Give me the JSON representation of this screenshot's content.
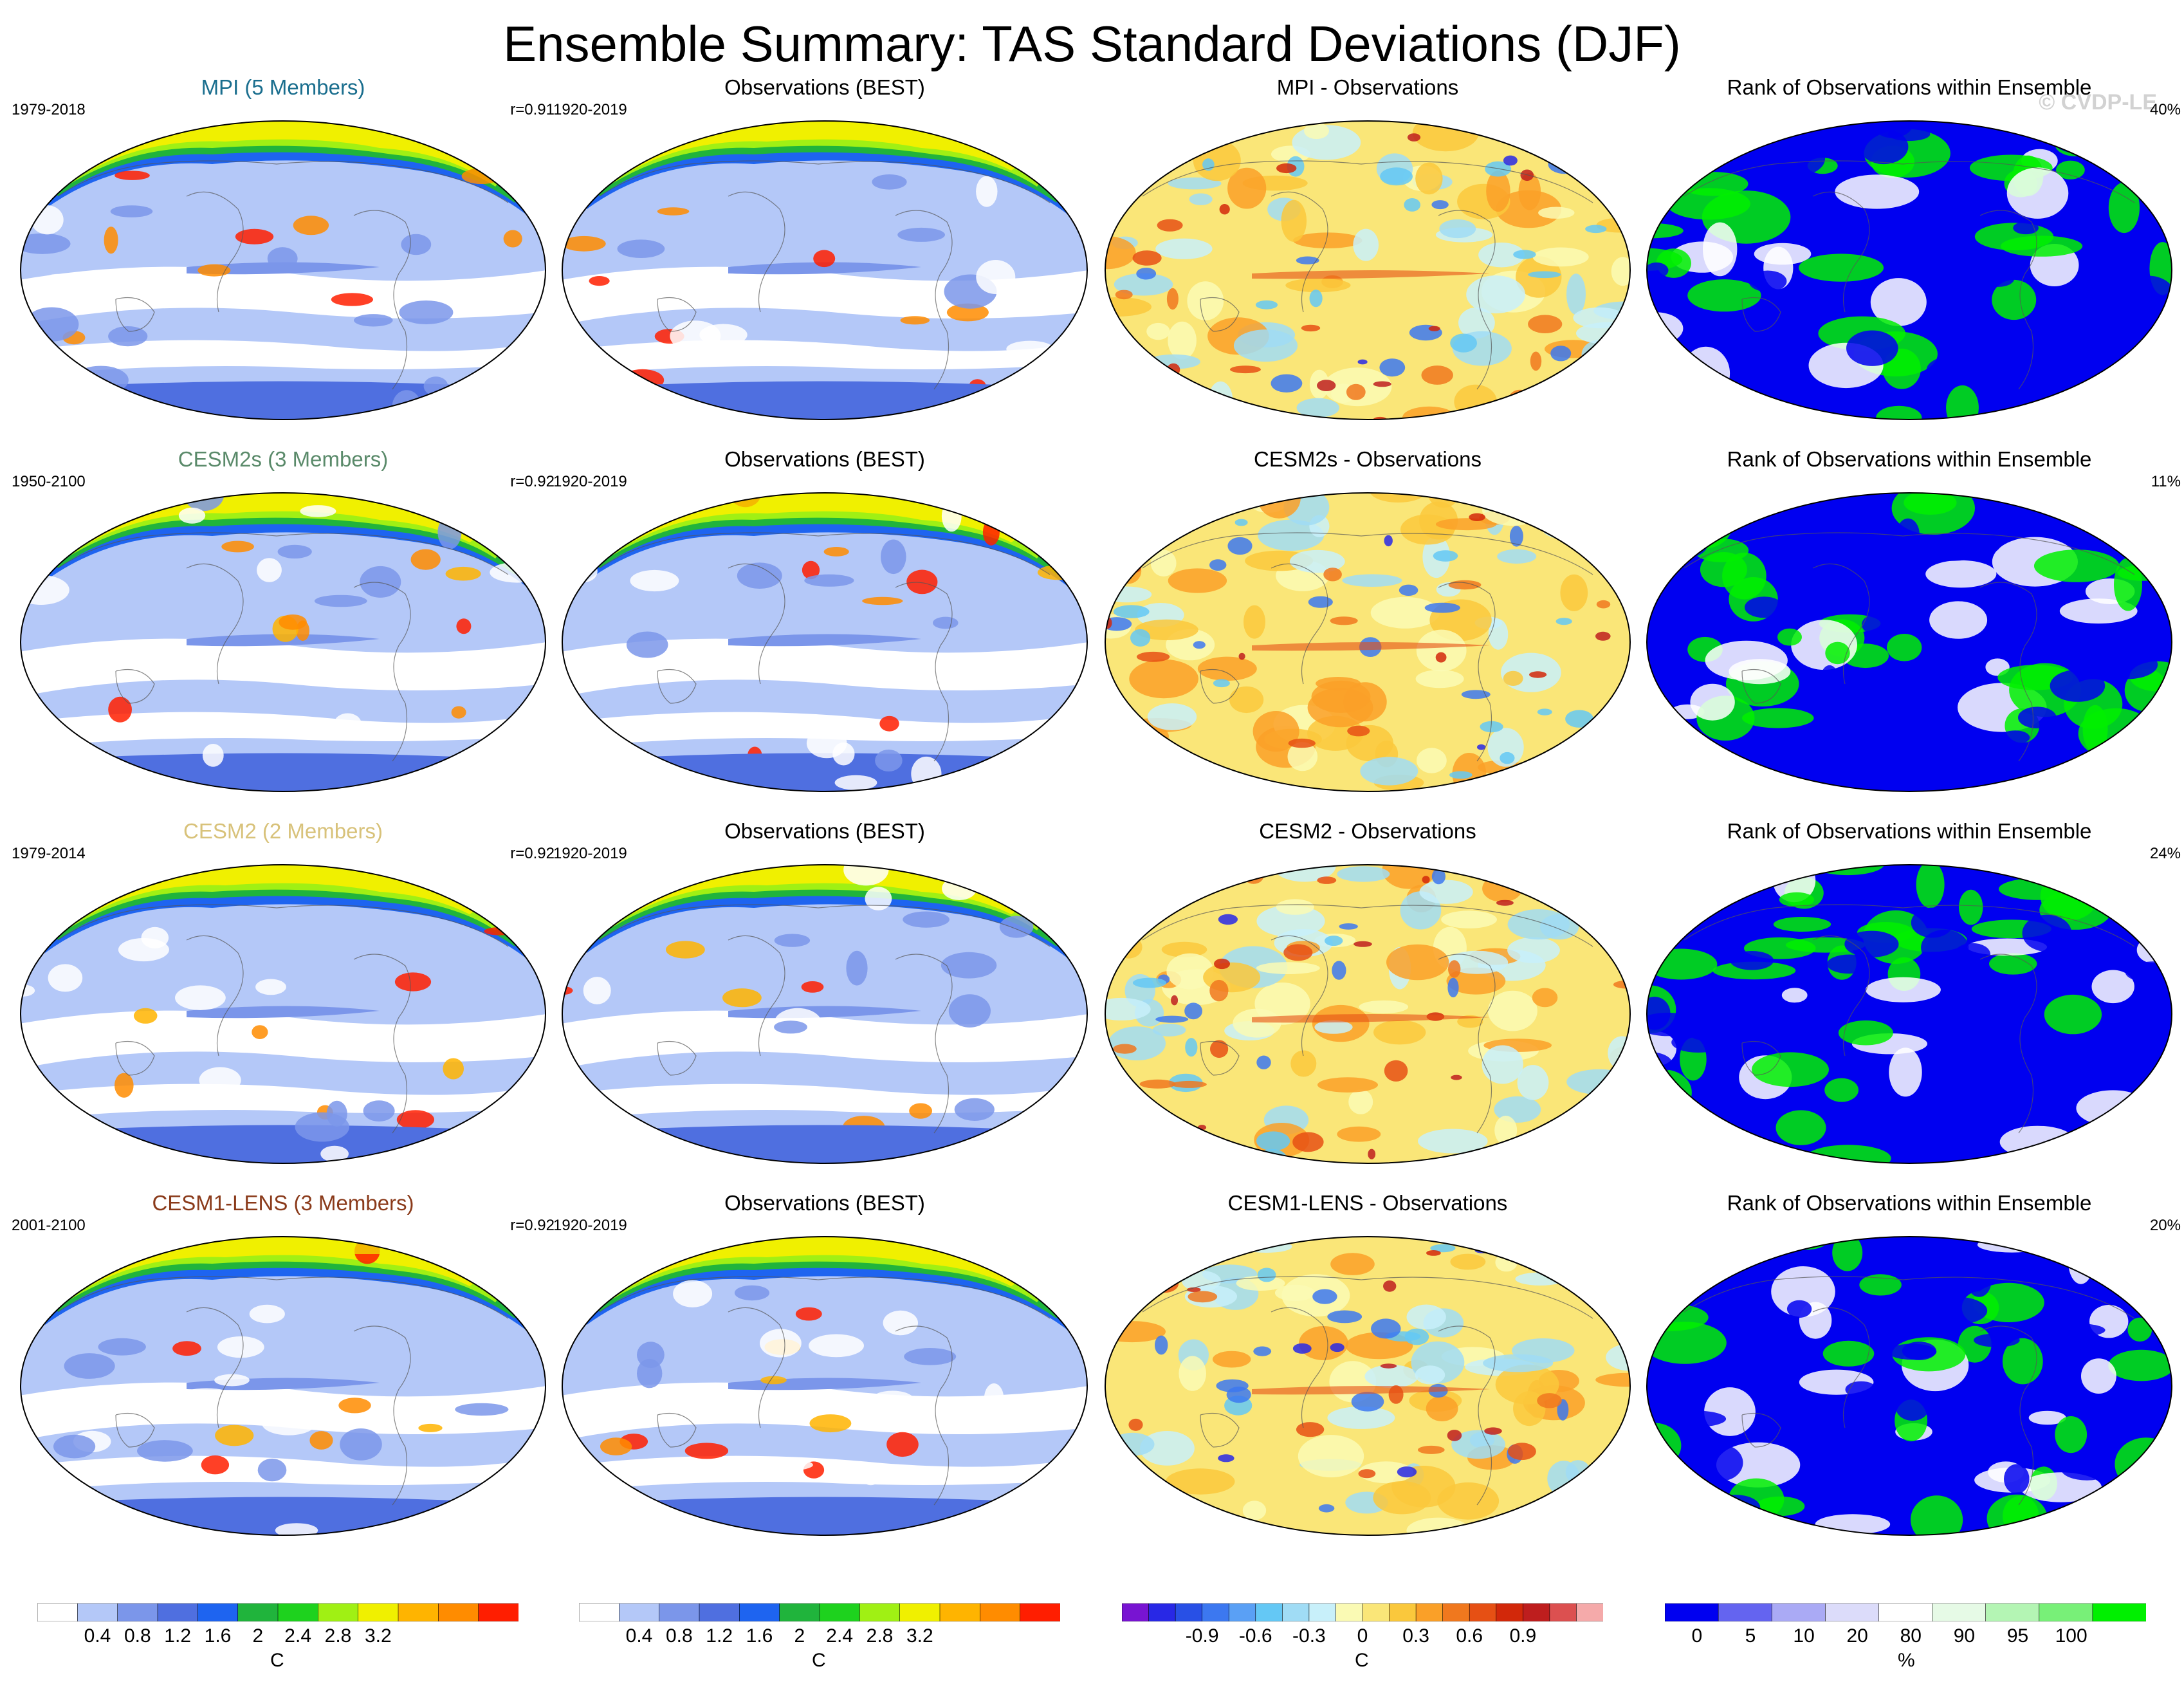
{
  "title": "Ensemble Summary: TAS Standard Deviations (DJF)",
  "watermark": "© CVDP-LE",
  "rows": [
    {
      "model_title": "MPI (5 Members)",
      "model_color": "#1a6e8e",
      "model_period": "1979-2018",
      "pattern_corr": "r=0.91",
      "obs_title": "Observations (BEST)",
      "obs_period": "1920-2019",
      "diff_title": "MPI - Observations",
      "rank_title": "Rank of Observations within Ensemble",
      "rank_pct": "40%"
    },
    {
      "model_title": "CESM2s (3 Members)",
      "model_color": "#5a8a6a",
      "model_period": "1950-2100",
      "pattern_corr": "r=0.92",
      "obs_title": "Observations (BEST)",
      "obs_period": "1920-2019",
      "diff_title": "CESM2s - Observations",
      "rank_title": "Rank of Observations within Ensemble",
      "rank_pct": "11%"
    },
    {
      "model_title": "CESM2 (2 Members)",
      "model_color": "#d8c27a",
      "model_period": "1979-2014",
      "pattern_corr": "r=0.92",
      "obs_title": "Observations (BEST)",
      "obs_period": "1920-2019",
      "diff_title": "CESM2 - Observations",
      "rank_title": "Rank of Observations within Ensemble",
      "rank_pct": "24%"
    },
    {
      "model_title": "CESM1-LENS (3 Members)",
      "model_color": "#8a3a1a",
      "model_period": "2001-2100",
      "pattern_corr": "r=0.92",
      "obs_title": "Observations (BEST)",
      "obs_period": "1920-2019",
      "diff_title": "CESM1-LENS - Observations",
      "rank_title": "Rank of Observations within Ensemble",
      "rank_pct": "20%"
    }
  ],
  "colorbars": {
    "stddev": {
      "units": "C",
      "labels": [
        "0.4",
        "0.8",
        "1.2",
        "1.6",
        "2",
        "2.4",
        "2.8",
        "3.2"
      ],
      "colors": [
        "#ffffff",
        "#b4c8f8",
        "#7b96ea",
        "#4f6fe0",
        "#1e64f0",
        "#20b43c",
        "#1ed21e",
        "#a0f014",
        "#f0f000",
        "#ffb400",
        "#ff8c00",
        "#ff1e00"
      ]
    },
    "diff": {
      "units": "C",
      "labels": [
        "-0.9",
        "-0.6",
        "-0.3",
        "0",
        "0.3",
        "0.6",
        "0.9"
      ],
      "colors": [
        "#7814d2",
        "#2828e6",
        "#2850e6",
        "#3c78f0",
        "#5aa0f5",
        "#64c8f5",
        "#a0dcf5",
        "#c8f0fa",
        "#fafab4",
        "#fae678",
        "#fac83c",
        "#faa028",
        "#f0781e",
        "#e65014",
        "#d2280a",
        "#be1e1e",
        "#dc5050",
        "#f5aaaa"
      ]
    },
    "rank": {
      "units": "%",
      "labels": [
        "0",
        "5",
        "10",
        "20",
        "80",
        "90",
        "95",
        "100"
      ],
      "colors": [
        "#0000f0",
        "#6464f0",
        "#aaaaf5",
        "#dcdcfa",
        "#ffffff",
        "#e6fae6",
        "#b4f5b4",
        "#78f078",
        "#00f000"
      ]
    }
  }
}
